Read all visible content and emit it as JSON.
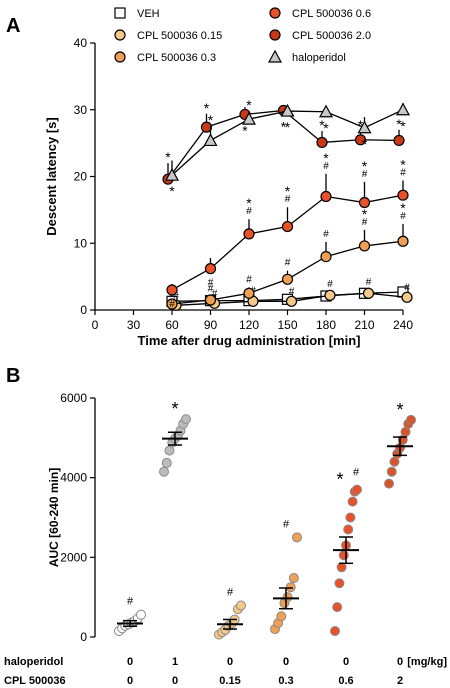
{
  "panels": {
    "a": "A",
    "b": "B"
  },
  "chart_data": [
    {
      "type": "line",
      "panel": "A",
      "title": "",
      "xlabel": "Time after drug administration [min]",
      "ylabel": "Descent latency [s]",
      "xlim": [
        0,
        240
      ],
      "ylim": [
        0,
        40
      ],
      "xticks": [
        0,
        30,
        60,
        90,
        120,
        150,
        180,
        210,
        240
      ],
      "yticks": [
        0,
        10,
        20,
        30,
        40
      ],
      "x": [
        60,
        90,
        120,
        150,
        180,
        210,
        240
      ],
      "legend_position": "top",
      "grid": false,
      "series": [
        {
          "name": "VEH",
          "marker": "square",
          "fill": "#ffffff",
          "values": [
            1.3,
            1.4,
            1.4,
            1.6,
            2.1,
            2.5,
            2.7
          ],
          "errors": [
            0.3,
            0.4,
            0.3,
            0.4,
            0.6,
            0.6,
            0.5
          ],
          "annotations": []
        },
        {
          "name": "CPL 500036 0.15",
          "marker": "circle",
          "fill": "#f5c98a",
          "values": [
            0.7,
            1.0,
            1.3,
            1.3,
            2.2,
            2.5,
            1.9
          ],
          "errors": [
            0.2,
            0.3,
            0.4,
            0.3,
            0.5,
            0.5,
            0.3
          ],
          "annotations": [
            "#",
            "#",
            "#",
            "#",
            "#",
            "#",
            "#"
          ]
        },
        {
          "name": "CPL 500036 0.3",
          "marker": "circle",
          "fill": "#f0a055",
          "values": [
            0.9,
            1.5,
            2.5,
            4.6,
            8.0,
            9.6,
            10.3
          ],
          "errors": [
            0.3,
            0.5,
            0.9,
            1.3,
            2.2,
            2.4,
            2.6
          ],
          "annotations": [
            "#",
            "#",
            "#",
            "#",
            "#",
            "*\n#",
            "*\n#"
          ]
        },
        {
          "name": "CPL 500036 0.6",
          "marker": "circle",
          "fill": "#e8522a",
          "values": [
            3.0,
            6.2,
            11.4,
            12.5,
            17.0,
            16.1,
            17.2
          ],
          "errors": [
            0.9,
            1.6,
            2.2,
            2.9,
            3.4,
            3.1,
            2.2
          ],
          "annotations": [
            "#",
            "#",
            "*\n#",
            "*\n#",
            "*\n#",
            "*\n#",
            "*\n#"
          ]
        },
        {
          "name": "CPL 500036 2.0",
          "marker": "circle",
          "fill": "#c83a17",
          "values": [
            19.6,
            27.4,
            29.3,
            29.9,
            25.1,
            25.5,
            25.4
          ],
          "errors": [
            2.4,
            2.0,
            1.1,
            0.8,
            1.7,
            1.3,
            1.6
          ],
          "annotations": [
            "*",
            "*",
            "*",
            "*",
            "*",
            "*",
            "*"
          ]
        },
        {
          "name": "haloperidol",
          "marker": "triangle",
          "fill": "#c8c8c8",
          "values": [
            20.2,
            25.4,
            28.6,
            29.8,
            29.7,
            27.3,
            30.0
          ],
          "errors": [
            2.2,
            2.2,
            1.2,
            0.7,
            0.8,
            1.6,
            1.0
          ],
          "annotations": [
            "*",
            "*",
            "*",
            "*",
            "*",
            "*",
            "*"
          ]
        }
      ]
    },
    {
      "type": "scatter",
      "panel": "B",
      "title": "",
      "xlabel": "",
      "ylabel": "AUC [60-240 min]",
      "ylim": [
        0,
        6000
      ],
      "yticks": [
        0,
        2000,
        4000,
        6000
      ],
      "unit_label": "[mg/kg]",
      "row_labels": {
        "haloperidol": "haloperidol",
        "cpl": "CPL 500036"
      },
      "grid": false,
      "groups": [
        {
          "haloperidol": "0",
          "cpl": "0",
          "fill": "#ffffff",
          "mean": 340,
          "sem": 70,
          "annotation": "#",
          "points": [
            150,
            220,
            280,
            320,
            360,
            400,
            470,
            560
          ]
        },
        {
          "haloperidol": "1",
          "cpl": "0",
          "fill": "#bcbcbc",
          "mean": 4980,
          "sem": 160,
          "annotation": "*",
          "points": [
            4150,
            4370,
            4680,
            4880,
            4980,
            5050,
            5180,
            5350,
            5470
          ]
        },
        {
          "haloperidol": "0",
          "cpl": "0.15",
          "fill": "#f5c98a",
          "mean": 320,
          "sem": 120,
          "annotation": "#",
          "points": [
            60,
            120,
            180,
            280,
            340,
            440,
            700,
            790
          ]
        },
        {
          "haloperidol": "0",
          "cpl": "0.3",
          "fill": "#f0a055",
          "mean": 970,
          "sem": 260,
          "annotation": "#",
          "points": [
            200,
            350,
            520,
            850,
            1000,
            1250,
            1480,
            2500
          ]
        },
        {
          "haloperidol": "0",
          "cpl": "0.6",
          "fill": "#e8522a",
          "mean": 2180,
          "sem": 330,
          "annotation": "* #",
          "points": [
            150,
            750,
            1350,
            1750,
            2050,
            2300,
            2700,
            3000,
            3400,
            3650,
            3700
          ]
        },
        {
          "haloperidol": "0",
          "cpl": "2",
          "fill": "#d9542b",
          "mean": 4790,
          "sem": 230,
          "annotation": "*",
          "points": [
            3850,
            4150,
            4400,
            4600,
            4750,
            4950,
            5150,
            5350,
            5450
          ]
        }
      ]
    }
  ]
}
